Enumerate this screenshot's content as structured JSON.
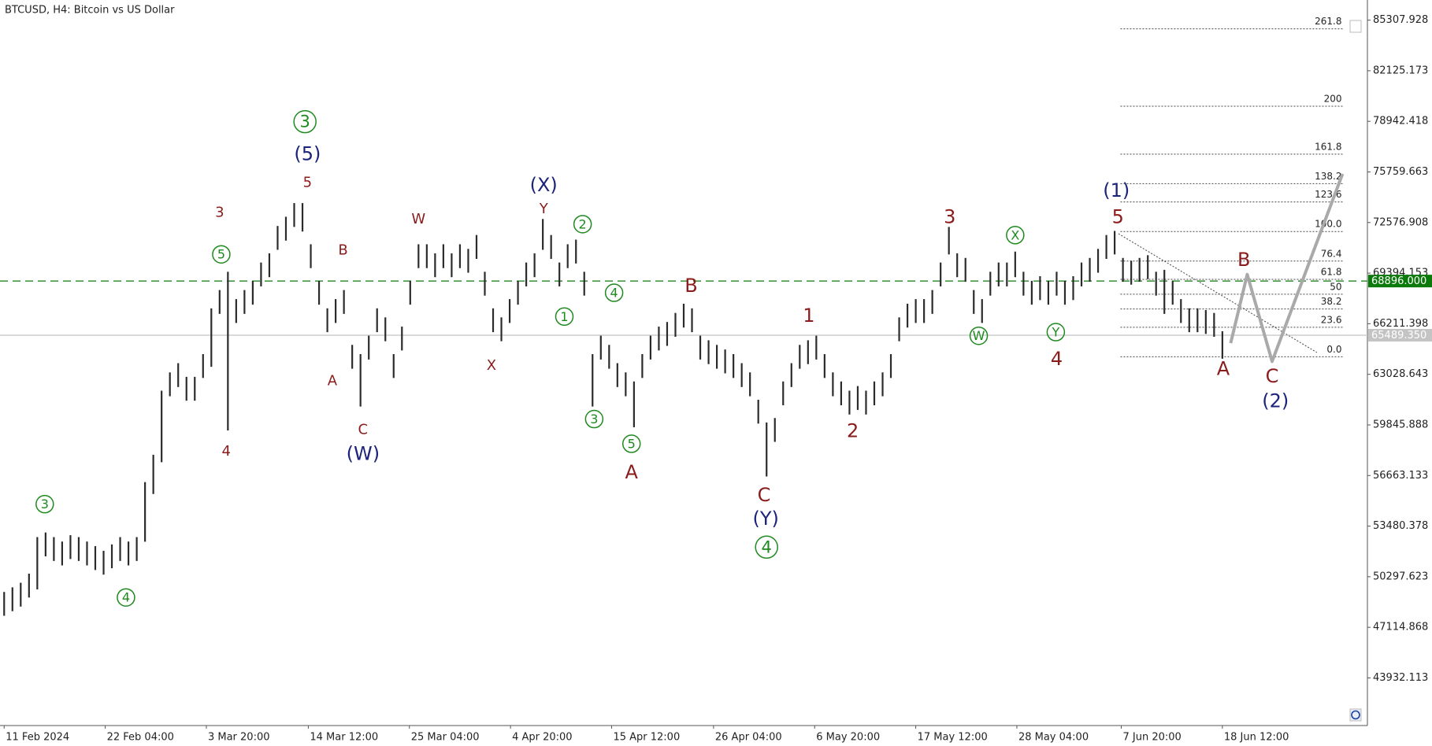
{
  "chart_data": {
    "type": "hilo",
    "title": "BTCUSD, H4:  Bitcoin vs US Dollar",
    "color": "#2b2b2b",
    "xlim": [
      -0.5,
      164.5
    ],
    "ylim": [
      40937,
      86574
    ],
    "yticks": [
      85307.928,
      82125.173,
      78942.418,
      75759.663,
      72576.908,
      69394.153,
      66211.398,
      63028.643,
      59845.888,
      56663.133,
      53480.378,
      50297.623,
      47114.868,
      43932.113
    ],
    "xticks": [
      {
        "value": 0,
        "label": "11 Feb 2024"
      },
      {
        "value": 12.2,
        "label": "22 Feb 04:00"
      },
      {
        "value": 24.4,
        "label": "3 Mar 20:00"
      },
      {
        "value": 36.7,
        "label": "14 Mar 12:00"
      },
      {
        "value": 48.9,
        "label": "25 Mar 04:00"
      },
      {
        "value": 61.1,
        "label": "4 Apr 20:00"
      },
      {
        "value": 73.3,
        "label": "15 Apr 12:00"
      },
      {
        "value": 85.6,
        "label": "26 Apr 04:00"
      },
      {
        "value": 97.8,
        "label": "6 May 20:00"
      },
      {
        "value": 110,
        "label": "17 May 12:00"
      },
      {
        "value": 122.2,
        "label": "28 May 04:00"
      },
      {
        "value": 134.8,
        "label": "7 Jun 20:00"
      },
      {
        "value": 147,
        "label": "18 Jun 12:00"
      }
    ],
    "high": [
      49340,
      49630,
      49920,
      50490,
      52790,
      53080,
      52790,
      52510,
      52910,
      52790,
      52510,
      52220,
      51930,
      52330,
      52790,
      52510,
      52790,
      56250,
      57970,
      62000,
      63150,
      63730,
      62870,
      62870,
      64300,
      67180,
      68330,
      69480,
      67760,
      68330,
      68910,
      70060,
      70640,
      72360,
      72940,
      73800,
      73800,
      71210,
      68910,
      67180,
      67760,
      68330,
      64880,
      64300,
      65460,
      67180,
      66610,
      64300,
      66030,
      68910,
      71210,
      71210,
      70640,
      71210,
      70640,
      71210,
      70920,
      71790,
      69480,
      67180,
      66610,
      67760,
      68910,
      70060,
      70640,
      72800,
      71790,
      70060,
      71210,
      71500,
      69480,
      64300,
      65460,
      64880,
      63730,
      63150,
      62580,
      64300,
      65460,
      66030,
      66320,
      66890,
      67470,
      67180,
      65460,
      65170,
      64880,
      64590,
      64300,
      63730,
      63150,
      61430,
      60000,
      60280,
      62580,
      63730,
      64880,
      65170,
      65460,
      64300,
      63150,
      62580,
      62000,
      62290,
      62000,
      62580,
      63150,
      64300,
      66610,
      67470,
      67760,
      67760,
      68330,
      70060,
      72300,
      70640,
      70350,
      68330,
      67760,
      69480,
      70060,
      70060,
      70750,
      69480,
      68910,
      69200,
      68910,
      69480,
      68910,
      69200,
      70060,
      70350,
      70920,
      71790,
      72050,
      70350,
      70170,
      70350,
      70520,
      69480,
      69600,
      68910,
      67760,
      67180,
      67180,
      67070,
      66890,
      65740
    ],
    "low": [
      47840,
      48130,
      48420,
      48990,
      49500,
      51580,
      51290,
      51010,
      51410,
      51290,
      51010,
      50720,
      50430,
      50830,
      51290,
      51010,
      51290,
      52500,
      55500,
      57500,
      61650,
      62230,
      61370,
      61370,
      62800,
      63500,
      66830,
      59500,
      66260,
      66830,
      67410,
      68560,
      69140,
      70860,
      71440,
      72300,
      72010,
      69710,
      67410,
      65680,
      66260,
      66830,
      63380,
      61000,
      63960,
      65680,
      65110,
      62800,
      64530,
      67410,
      69710,
      69710,
      69140,
      69710,
      69140,
      69710,
      69420,
      70290,
      67980,
      65680,
      65110,
      66260,
      67410,
      68560,
      69140,
      70860,
      70290,
      68560,
      69710,
      70000,
      67980,
      61000,
      63960,
      63380,
      62230,
      61650,
      59700,
      62800,
      63960,
      64530,
      64820,
      65390,
      65970,
      65680,
      63960,
      63670,
      63380,
      63090,
      62800,
      62230,
      61650,
      59930,
      56600,
      58780,
      61080,
      62230,
      63380,
      63670,
      63960,
      62800,
      61650,
      61080,
      60500,
      60790,
      60500,
      61080,
      61650,
      62800,
      65110,
      65970,
      66260,
      66260,
      66830,
      68560,
      70570,
      69140,
      68850,
      66830,
      66260,
      67980,
      68560,
      68560,
      69140,
      67980,
      67410,
      67700,
      67410,
      67980,
      67410,
      67700,
      68560,
      68850,
      69420,
      70290,
      70570,
      68850,
      68670,
      68850,
      69020,
      67980,
      66830,
      67410,
      66260,
      65680,
      65680,
      65570,
      65390,
      64010
    ],
    "forecast": {
      "color": "#a9a9a9",
      "x": [
        148,
        150,
        153,
        161.5
      ],
      "values": [
        64990,
        69310,
        63840,
        75640
      ]
    },
    "price_lines": [
      {
        "value": 68896,
        "label": "68896.000",
        "color": "#0a7a0a",
        "style": "dashed"
      },
      {
        "value": 65489.35,
        "label": "65489.350",
        "color": "#c4c4c4",
        "style": "solid"
      }
    ],
    "fib": {
      "from": 64130,
      "to": 72010,
      "levels": [
        261.8,
        200,
        161.8,
        138.2,
        123.6,
        {
          "value": 100,
          "label": "100.0"
        },
        76.4,
        61.8,
        50,
        38.2,
        23.6,
        {
          "value": 0,
          "label": "0.0"
        }
      ]
    },
    "annotations": [
      {
        "text": "3",
        "x": 4.9,
        "y": 54864,
        "color": "#1e8a1e",
        "circled": true,
        "size": "small"
      },
      {
        "text": "4",
        "x": 14.7,
        "y": 48994,
        "color": "#1e8a1e",
        "circled": true,
        "size": "small"
      },
      {
        "text": "3",
        "x": 26,
        "y": 73222,
        "color": "#8b1c1c",
        "circled": false,
        "size": "small"
      },
      {
        "text": "5",
        "x": 26.2,
        "y": 70575,
        "color": "#1e8a1e",
        "circled": true,
        "size": "small"
      },
      {
        "text": "4",
        "x": 26.8,
        "y": 58202,
        "color": "#8b1c1c",
        "circled": false,
        "size": "small"
      },
      {
        "text": "3",
        "x": 36.3,
        "y": 78920,
        "color": "#1e8a1e",
        "circled": true,
        "size": "large"
      },
      {
        "text": "(5)",
        "x": 36.6,
        "y": 76906,
        "color": "#1c237a",
        "circled": false,
        "size": "large"
      },
      {
        "text": "5",
        "x": 36.6,
        "y": 75122,
        "color": "#8b1c1c",
        "circled": false,
        "size": "small"
      },
      {
        "text": "B",
        "x": 40.9,
        "y": 70863,
        "color": "#8b1c1c",
        "circled": false,
        "size": "small"
      },
      {
        "text": "A",
        "x": 39.6,
        "y": 62633,
        "color": "#8b1c1c",
        "circled": false,
        "size": "small"
      },
      {
        "text": "C",
        "x": 43.3,
        "y": 59583,
        "color": "#8b1c1c",
        "circled": false,
        "size": "small"
      },
      {
        "text": "(W)",
        "x": 43.3,
        "y": 58029,
        "color": "#1c237a",
        "circled": false,
        "size": "large"
      },
      {
        "text": "W",
        "x": 50,
        "y": 72820,
        "color": "#8b1c1c",
        "circled": false,
        "size": "small"
      },
      {
        "text": "X",
        "x": 58.8,
        "y": 63612,
        "color": "#8b1c1c",
        "circled": false,
        "size": "small"
      },
      {
        "text": "(X)",
        "x": 65.1,
        "y": 74949,
        "color": "#1c237a",
        "circled": false,
        "size": "large"
      },
      {
        "text": "Y",
        "x": 65.1,
        "y": 73453,
        "color": "#8b1c1c",
        "circled": false,
        "size": "small"
      },
      {
        "text": "2",
        "x": 69.8,
        "y": 72474,
        "color": "#1e8a1e",
        "circled": true,
        "size": "small"
      },
      {
        "text": "1",
        "x": 67.6,
        "y": 66662,
        "color": "#1e8a1e",
        "circled": true,
        "size": "small"
      },
      {
        "text": "4",
        "x": 73.6,
        "y": 68158,
        "color": "#1e8a1e",
        "circled": true,
        "size": "small"
      },
      {
        "text": "3",
        "x": 71.2,
        "y": 60216,
        "color": "#1e8a1e",
        "circled": true,
        "size": "small"
      },
      {
        "text": "5",
        "x": 75.7,
        "y": 58662,
        "color": "#1e8a1e",
        "circled": true,
        "size": "small"
      },
      {
        "text": "A",
        "x": 75.7,
        "y": 56878,
        "color": "#8b1c1c",
        "circled": false,
        "size": "large"
      },
      {
        "text": "B",
        "x": 82.9,
        "y": 68618,
        "color": "#8b1c1c",
        "circled": false,
        "size": "large"
      },
      {
        "text": "C",
        "x": 91.7,
        "y": 55439,
        "color": "#8b1c1c",
        "circled": false,
        "size": "large"
      },
      {
        "text": "(Y)",
        "x": 91.9,
        "y": 53943,
        "color": "#1c237a",
        "circled": false,
        "size": "large"
      },
      {
        "text": "4",
        "x": 92,
        "y": 52159,
        "color": "#1e8a1e",
        "circled": true,
        "size": "large"
      },
      {
        "text": "1",
        "x": 97.1,
        "y": 66719,
        "color": "#8b1c1c",
        "circled": false,
        "size": "large"
      },
      {
        "text": "2",
        "x": 102.4,
        "y": 59468,
        "color": "#8b1c1c",
        "circled": false,
        "size": "large"
      },
      {
        "text": "3",
        "x": 114.1,
        "y": 72935,
        "color": "#8b1c1c",
        "circled": false,
        "size": "large"
      },
      {
        "text": "W",
        "x": 117.6,
        "y": 65453,
        "color": "#1e8a1e",
        "circled": true,
        "size": "small"
      },
      {
        "text": "X",
        "x": 122,
        "y": 71784,
        "color": "#1e8a1e",
        "circled": true,
        "size": "small"
      },
      {
        "text": "Y",
        "x": 126.9,
        "y": 65683,
        "color": "#1e8a1e",
        "circled": true,
        "size": "small"
      },
      {
        "text": "4",
        "x": 127,
        "y": 64014,
        "color": "#8b1c1c",
        "circled": false,
        "size": "large"
      },
      {
        "text": "(1)",
        "x": 134.2,
        "y": 74604,
        "color": "#1c237a",
        "circled": false,
        "size": "large"
      },
      {
        "text": "5",
        "x": 134.4,
        "y": 72935,
        "color": "#8b1c1c",
        "circled": false,
        "size": "large"
      },
      {
        "text": "A",
        "x": 147.1,
        "y": 63381,
        "color": "#8b1c1c",
        "circled": false,
        "size": "large"
      },
      {
        "text": "B",
        "x": 149.6,
        "y": 70230,
        "color": "#8b1c1c",
        "circled": false,
        "size": "large"
      },
      {
        "text": "C",
        "x": 153,
        "y": 62921,
        "color": "#8b1c1c",
        "circled": false,
        "size": "large"
      },
      {
        "text": "(2)",
        "x": 153.4,
        "y": 61367,
        "color": "#1c237a",
        "circled": false,
        "size": "large"
      }
    ]
  }
}
